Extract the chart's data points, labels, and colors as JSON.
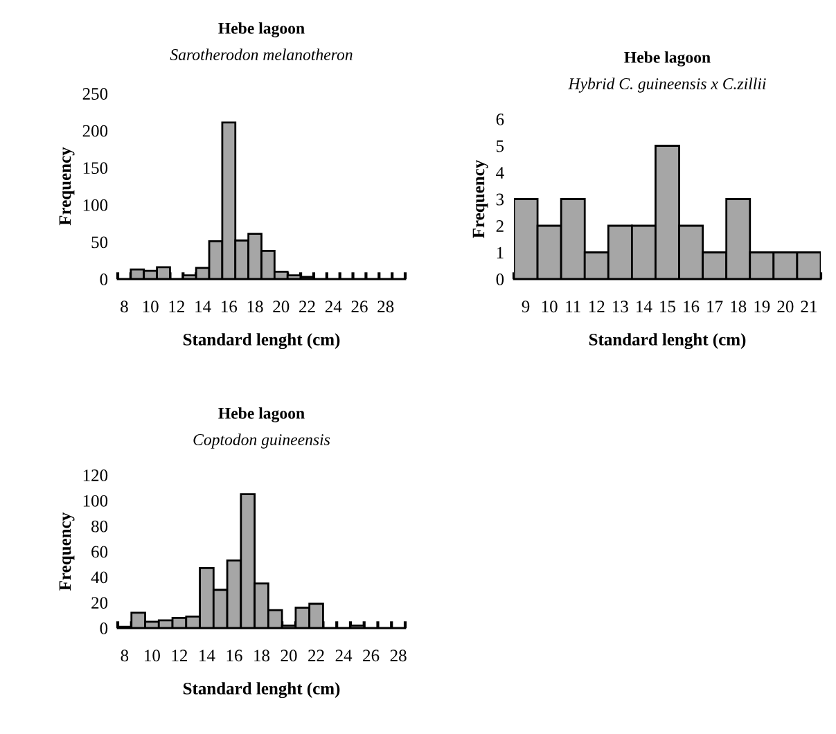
{
  "chart_data": [
    {
      "type": "bar",
      "title": "Hebe lagoon",
      "subtitle": "Sarotherodon melanotheron",
      "xlabel": "Standard lenght (cm)",
      "ylabel": "Frequency",
      "categories": [
        "8",
        null,
        "10",
        null,
        "12",
        null,
        "14",
        null,
        "16",
        null,
        "18",
        null,
        "20",
        null,
        "22",
        null,
        "24",
        null,
        "26",
        null,
        "28",
        null
      ],
      "values": [
        0,
        13,
        11,
        16,
        0,
        5,
        15,
        51,
        211,
        52,
        61,
        38,
        10,
        5,
        3,
        0,
        0,
        0,
        0,
        0,
        0,
        0
      ],
      "color": "#a6a6a6",
      "ylim": [
        0,
        250
      ],
      "yticks": [
        0,
        50,
        100,
        150,
        200,
        250
      ],
      "grid": false,
      "legend": false
    },
    {
      "type": "bar",
      "title": "Hebe lagoon",
      "subtitle": "Hybrid C. guineensis x C.zillii",
      "xlabel": "Standard lenght (cm)",
      "ylabel": "Frequency",
      "categories": [
        "9",
        "10",
        "11",
        "12",
        "13",
        "14",
        "15",
        "16",
        "17",
        "18",
        "19",
        "20",
        "21"
      ],
      "values": [
        3,
        2,
        3,
        1,
        2,
        2,
        5,
        2,
        1,
        3,
        1,
        1,
        1
      ],
      "color": "#a6a6a6",
      "ylim": [
        0,
        6
      ],
      "yticks": [
        0,
        1,
        2,
        3,
        4,
        5,
        6
      ],
      "grid": false,
      "legend": false
    },
    {
      "type": "bar",
      "title": "Hebe lagoon",
      "subtitle": "Coptodon guineensis",
      "xlabel": "Standard lenght (cm)",
      "ylabel": "Frequency",
      "categories": [
        "8",
        null,
        "10",
        null,
        "12",
        null,
        "14",
        null,
        "16",
        null,
        "18",
        null,
        "20",
        null,
        "22",
        null,
        "24",
        null,
        "26",
        null,
        "28"
      ],
      "values": [
        1,
        12,
        5,
        6,
        8,
        9,
        47,
        30,
        53,
        105,
        35,
        14,
        2,
        16,
        19,
        0,
        0,
        2,
        0,
        0,
        0
      ],
      "color": "#a6a6a6",
      "ylim": [
        0,
        120
      ],
      "yticks": [
        0,
        20,
        40,
        60,
        80,
        100,
        120
      ],
      "grid": false,
      "legend": false
    }
  ]
}
